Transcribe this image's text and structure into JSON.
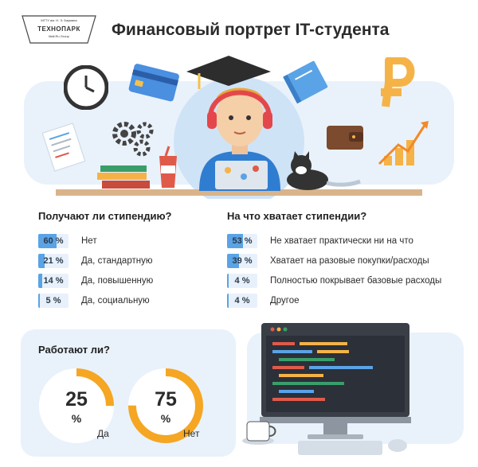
{
  "logo": {
    "line1": "МГТУ",
    "line1b": "им. Н. Э. Баумана",
    "name": "ТЕХНОПАРК",
    "sub": "Mail.Ru Group"
  },
  "title": "Финансовый портрет IT-студента",
  "scholarship": {
    "title": "Получают ли стипендию?",
    "items": [
      {
        "value": "60 %",
        "pct": 60,
        "label": "Нет"
      },
      {
        "value": "21 %",
        "pct": 21,
        "label": "Да, стандартную"
      },
      {
        "value": "14 %",
        "pct": 14,
        "label": "Да, повышенную"
      },
      {
        "value": "5 %",
        "pct": 5,
        "label": "Да, социальную"
      }
    ]
  },
  "enough": {
    "title": "На что хватает стипендии?",
    "items": [
      {
        "value": "53 %",
        "pct": 53,
        "label": "Не хватает практически ни на что"
      },
      {
        "value": "39 %",
        "pct": 39,
        "label": "Хватает на разовые покупки/расходы"
      },
      {
        "value": "4 %",
        "pct": 4,
        "label": "Полностью покрывает базовые расходы"
      },
      {
        "value": "4 %",
        "pct": 4,
        "label": "Другое"
      }
    ]
  },
  "work": {
    "title": "Работают ли?",
    "yes": {
      "num": "25",
      "pct_sign": "%",
      "label": "Да",
      "pct": 25
    },
    "no": {
      "num": "75",
      "pct_sign": "%",
      "label": "Нет",
      "pct": 75
    }
  },
  "colors": {
    "accent_blue": "#5aa3e6",
    "badge_bg": "#e8f1fb",
    "orange": "#f5a623",
    "panel_bg": "#e9f2fb"
  },
  "icons": [
    "clock-icon",
    "credit-card-icon",
    "graduation-cap-icon",
    "book-icon",
    "ruble-icon",
    "gears-icon",
    "wallet-icon",
    "chart-arrow-icon",
    "document-icon",
    "books-icon",
    "cup-icon",
    "laptop-icon",
    "cat-icon",
    "monitor-icon",
    "coffee-cup-icon",
    "keyboard-icon",
    "mouse-icon"
  ]
}
